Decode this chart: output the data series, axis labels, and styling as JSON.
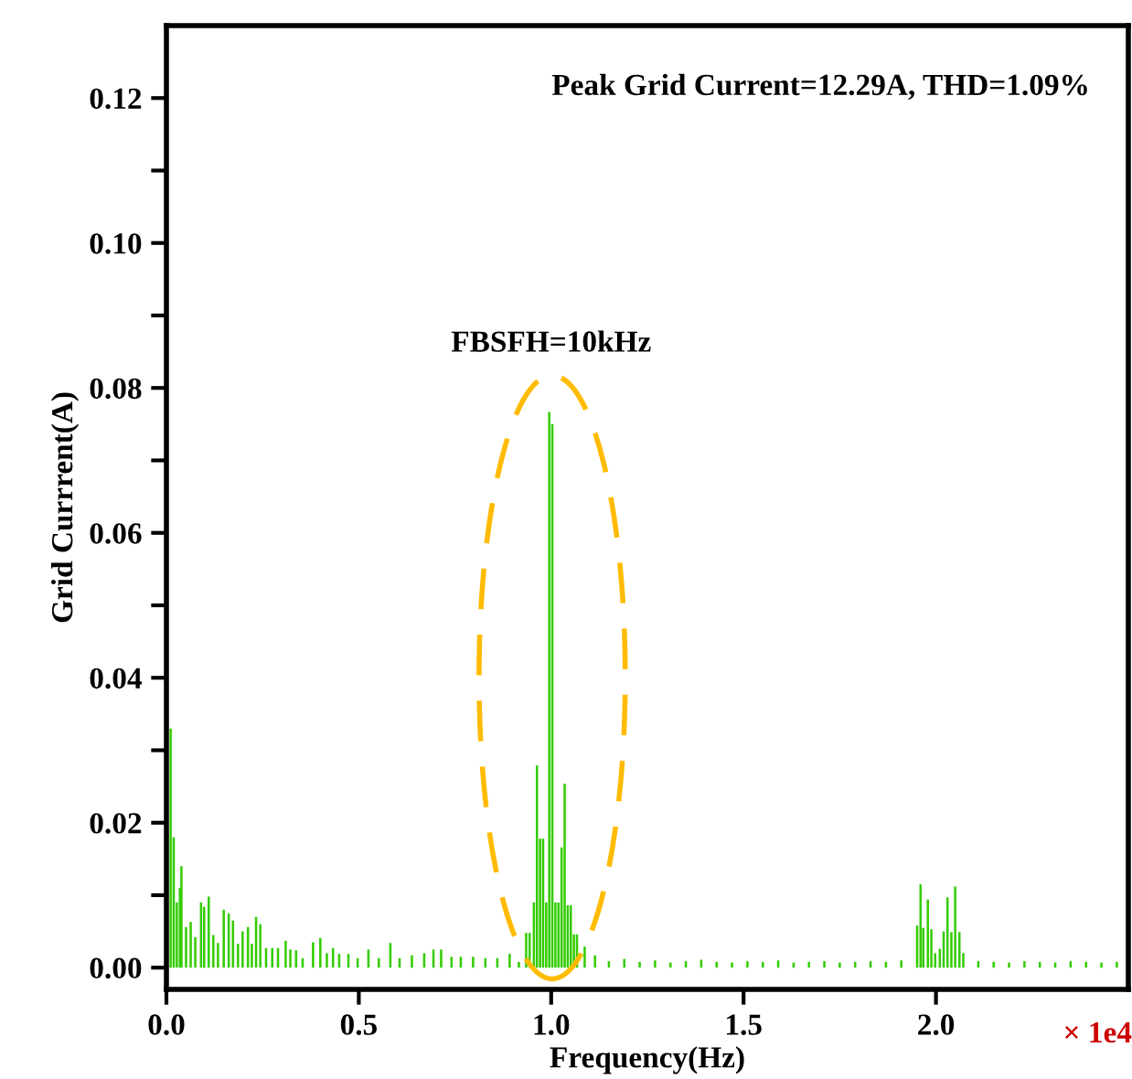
{
  "chart_data": {
    "type": "bar",
    "xlabel": "Frequency(Hz)",
    "ylabel": "Grid Currrent(A)",
    "x": [
      0.011,
      0.019,
      0.027,
      0.035,
      0.039,
      0.051,
      0.063,
      0.075,
      0.09,
      0.098,
      0.11,
      0.122,
      0.134,
      0.149,
      0.162,
      0.173,
      0.186,
      0.198,
      0.212,
      0.222,
      0.233,
      0.244,
      0.259,
      0.275,
      0.29,
      0.31,
      0.322,
      0.337,
      0.354,
      0.381,
      0.4,
      0.417,
      0.433,
      0.449,
      0.473,
      0.497,
      0.525,
      0.552,
      0.582,
      0.606,
      0.638,
      0.67,
      0.694,
      0.714,
      0.741,
      0.765,
      0.797,
      0.829,
      0.86,
      0.892,
      0.916,
      0.935,
      0.944,
      0.955,
      0.963,
      0.971,
      0.979,
      0.987,
      0.995,
      1.003,
      1.011,
      1.019,
      1.027,
      1.035,
      1.043,
      1.051,
      1.059,
      1.067,
      1.087,
      1.114,
      1.15,
      1.19,
      1.23,
      1.27,
      1.31,
      1.35,
      1.39,
      1.43,
      1.47,
      1.51,
      1.55,
      1.59,
      1.63,
      1.67,
      1.71,
      1.75,
      1.79,
      1.83,
      1.87,
      1.91,
      1.951,
      1.96,
      1.967,
      1.979,
      1.988,
      1.998,
      2.01,
      2.02,
      2.03,
      2.04,
      2.05,
      2.061,
      2.071,
      2.11,
      2.15,
      2.19,
      2.23,
      2.27,
      2.31,
      2.35,
      2.39,
      2.43,
      2.47
    ],
    "values": [
      0.033,
      0.018,
      0.009,
      0.011,
      0.014,
      0.0056,
      0.0063,
      0.0042,
      0.009,
      0.0084,
      0.0098,
      0.0045,
      0.0034,
      0.008,
      0.0075,
      0.0065,
      0.0033,
      0.005,
      0.0056,
      0.0033,
      0.007,
      0.006,
      0.0027,
      0.0027,
      0.0027,
      0.0037,
      0.0025,
      0.0024,
      0.0013,
      0.0035,
      0.0041,
      0.002,
      0.0027,
      0.0019,
      0.0019,
      0.0013,
      0.0025,
      0.0013,
      0.0034,
      0.0013,
      0.0017,
      0.002,
      0.0025,
      0.0025,
      0.0015,
      0.0015,
      0.0015,
      0.0013,
      0.0013,
      0.0019,
      0.0008,
      0.0048,
      0.0048,
      0.009,
      0.0279,
      0.0178,
      0.0178,
      0.009,
      0.0767,
      0.075,
      0.009,
      0.009,
      0.0166,
      0.0254,
      0.0086,
      0.0086,
      0.0046,
      0.0046,
      0.0029,
      0.0017,
      0.0009,
      0.0012,
      0.0008,
      0.001,
      0.0007,
      0.0009,
      0.0011,
      0.0008,
      0.0007,
      0.0009,
      0.0008,
      0.001,
      0.0007,
      0.0008,
      0.0009,
      0.0007,
      0.0008,
      0.0009,
      0.0008,
      0.001,
      0.0058,
      0.0115,
      0.0055,
      0.0094,
      0.0053,
      0.002,
      0.0026,
      0.005,
      0.0097,
      0.0049,
      0.0112,
      0.0049,
      0.002,
      0.0009,
      0.0008,
      0.0007,
      0.0009,
      0.0008,
      0.0007,
      0.0009,
      0.0008,
      0.0007,
      0.0008
    ],
    "color": "#33cc00",
    "xlim": [
      0,
      2.5
    ],
    "xticks": [
      {
        "value": 0,
        "label": "0.0"
      },
      0.5,
      {
        "value": 1,
        "label": "1.0"
      },
      1.5,
      {
        "value": 2,
        "label": "2.0"
      }
    ],
    "ylim": [
      -0.003,
      0.13
    ],
    "yticks": [
      {
        "value": 0,
        "label": "0.00"
      },
      {
        "value": 0.01,
        "label": null
      },
      0.02,
      {
        "value": 0.03,
        "label": null
      },
      0.04,
      {
        "value": 0.05,
        "label": null
      },
      0.06,
      {
        "value": 0.07,
        "label": null
      },
      0.08,
      {
        "value": 0.09,
        "label": null
      },
      {
        "value": 0.1,
        "label": "0.10"
      },
      {
        "value": 0.11,
        "label": null
      },
      0.12
    ],
    "grid": false,
    "annotations": [
      "Peak Grid Current=12.29A, THD=1.09%",
      "FBSFH=10kHz",
      "× 1e4"
    ]
  }
}
